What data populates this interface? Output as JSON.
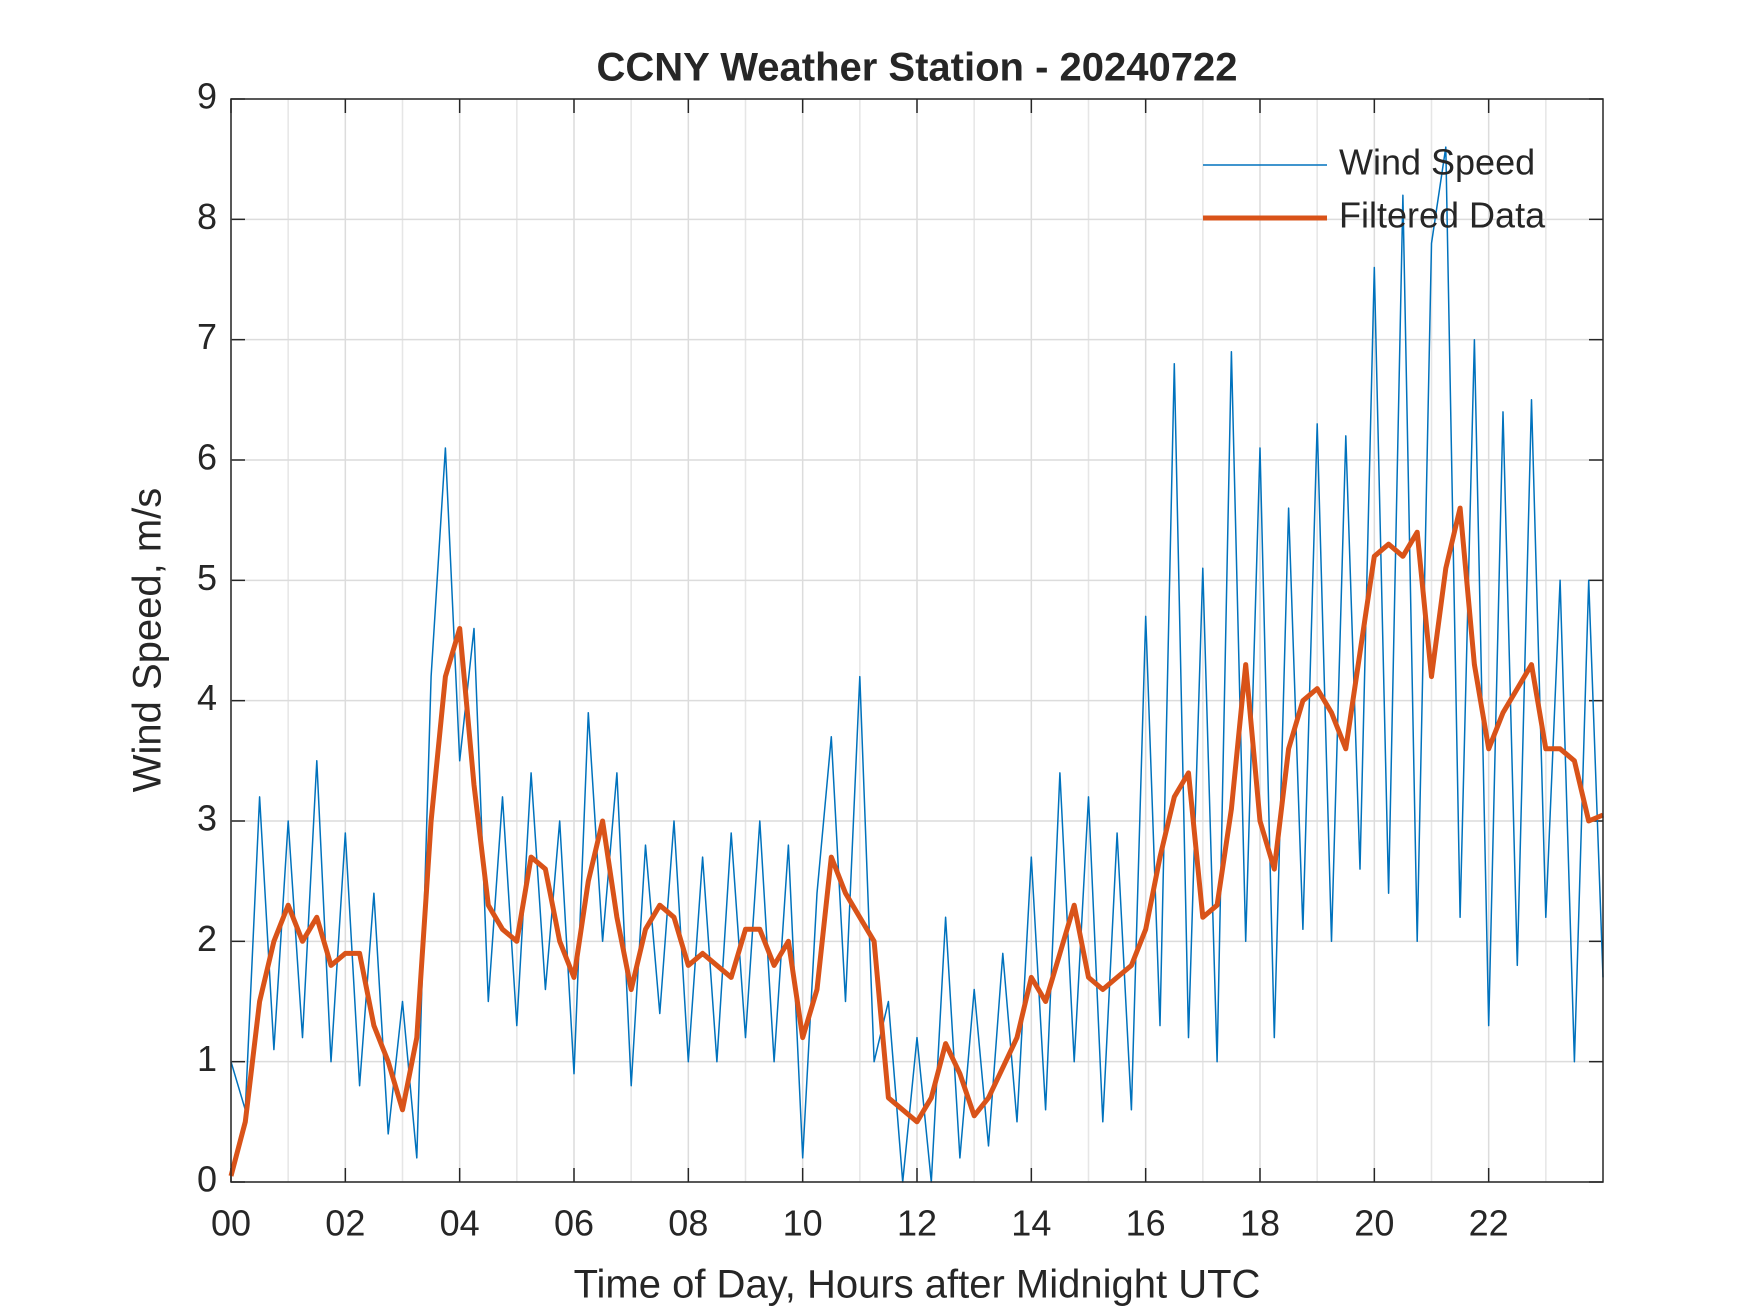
{
  "chart_data": {
    "type": "line",
    "title": "CCNY Weather Station - 20240722",
    "x_label": "Time of Day, Hours after Midnight UTC",
    "y_label": "Wind Speed, m/s",
    "x": [
      0,
      0.25,
      0.5,
      0.75,
      1,
      1.25,
      1.5,
      1.75,
      2,
      2.25,
      2.5,
      2.75,
      3,
      3.25,
      3.5,
      3.75,
      4,
      4.25,
      4.5,
      4.75,
      5,
      5.25,
      5.5,
      5.75,
      6,
      6.25,
      6.5,
      6.75,
      7,
      7.25,
      7.5,
      7.75,
      8,
      8.25,
      8.5,
      8.75,
      9,
      9.25,
      9.5,
      9.75,
      10,
      10.25,
      10.5,
      10.75,
      11,
      11.25,
      11.5,
      11.75,
      12,
      12.25,
      12.5,
      12.75,
      13,
      13.25,
      13.5,
      13.75,
      14,
      14.25,
      14.5,
      14.75,
      15,
      15.25,
      15.5,
      15.75,
      16,
      16.25,
      16.5,
      16.75,
      17,
      17.25,
      17.5,
      17.75,
      18,
      18.25,
      18.5,
      18.75,
      19,
      19.25,
      19.5,
      19.75,
      20,
      20.25,
      20.5,
      20.75,
      21,
      21.25,
      21.5,
      21.75,
      22,
      22.25,
      22.5,
      22.75,
      23,
      23.25,
      23.5,
      23.75,
      24
    ],
    "series": [
      {
        "name": "Wind Speed",
        "color": "#0072BD",
        "width": 1.5,
        "values": [
          1.0,
          0.6,
          3.2,
          1.1,
          3.0,
          1.2,
          3.5,
          1.0,
          2.9,
          0.8,
          2.4,
          0.4,
          1.5,
          0.2,
          4.2,
          6.1,
          3.5,
          4.6,
          1.5,
          3.2,
          1.3,
          3.4,
          1.6,
          3.0,
          0.9,
          3.9,
          2.0,
          3.4,
          0.8,
          2.8,
          1.4,
          3.0,
          1.0,
          2.7,
          1.0,
          2.9,
          1.2,
          3.0,
          1.0,
          2.8,
          0.2,
          2.4,
          3.7,
          1.5,
          4.2,
          1.0,
          1.5,
          0.0,
          1.2,
          0.0,
          2.2,
          0.2,
          1.6,
          0.3,
          1.9,
          0.5,
          2.7,
          0.6,
          3.4,
          1.0,
          3.2,
          0.5,
          2.9,
          0.6,
          4.7,
          1.3,
          6.8,
          1.2,
          5.1,
          1.0,
          6.9,
          2.0,
          6.1,
          1.2,
          5.6,
          2.1,
          6.3,
          2.0,
          6.2,
          2.6,
          7.6,
          2.4,
          8.2,
          2.0,
          7.8,
          8.6,
          2.2,
          7.0,
          1.3,
          6.4,
          1.8,
          6.5,
          2.2,
          5.0,
          1.0,
          5.0,
          1.7
        ]
      },
      {
        "name": "Filtered Data",
        "color": "#D95319",
        "width": 5,
        "values": [
          0.05,
          0.5,
          1.5,
          2.0,
          2.3,
          2.0,
          2.2,
          1.8,
          1.9,
          1.9,
          1.3,
          1.0,
          0.6,
          1.2,
          3.0,
          4.2,
          4.6,
          3.3,
          2.3,
          2.1,
          2.0,
          2.7,
          2.6,
          2.0,
          1.7,
          2.5,
          3.0,
          2.2,
          1.6,
          2.1,
          2.3,
          2.2,
          1.8,
          1.9,
          1.8,
          1.7,
          2.1,
          2.1,
          1.8,
          2.0,
          1.2,
          1.6,
          2.7,
          2.4,
          2.2,
          2.0,
          0.7,
          0.6,
          0.5,
          0.7,
          1.15,
          0.9,
          0.55,
          0.7,
          0.95,
          1.2,
          1.7,
          1.5,
          1.9,
          2.3,
          1.7,
          1.6,
          1.7,
          1.8,
          2.1,
          2.7,
          3.2,
          3.4,
          2.2,
          2.3,
          3.1,
          4.3,
          3.0,
          2.6,
          3.6,
          4.0,
          4.1,
          3.9,
          3.6,
          4.4,
          5.2,
          5.3,
          5.2,
          5.4,
          4.2,
          5.1,
          5.6,
          4.3,
          3.6,
          3.9,
          4.1,
          4.3,
          3.6,
          3.6,
          3.5,
          3.0,
          3.05
        ]
      }
    ],
    "xlim": [
      0,
      24
    ],
    "xticks": [
      {
        "value": 0,
        "label": "00"
      },
      {
        "value": 2,
        "label": "02"
      },
      {
        "value": 4,
        "label": "04"
      },
      {
        "value": 6,
        "label": "06"
      },
      {
        "value": 8,
        "label": "08"
      },
      {
        "value": 10,
        "label": "10"
      },
      {
        "value": 12,
        "label": "12"
      },
      {
        "value": 14,
        "label": "14"
      },
      {
        "value": 16,
        "label": "16"
      },
      {
        "value": 18,
        "label": "18"
      },
      {
        "value": 20,
        "label": "20"
      },
      {
        "value": 22,
        "label": "22"
      }
    ],
    "ylim": [
      0,
      9
    ],
    "yticks": [
      0,
      1,
      2,
      3,
      4,
      5,
      6,
      7,
      8,
      9
    ],
    "grid": true,
    "minor_grid": true,
    "legend": "upper right"
  }
}
